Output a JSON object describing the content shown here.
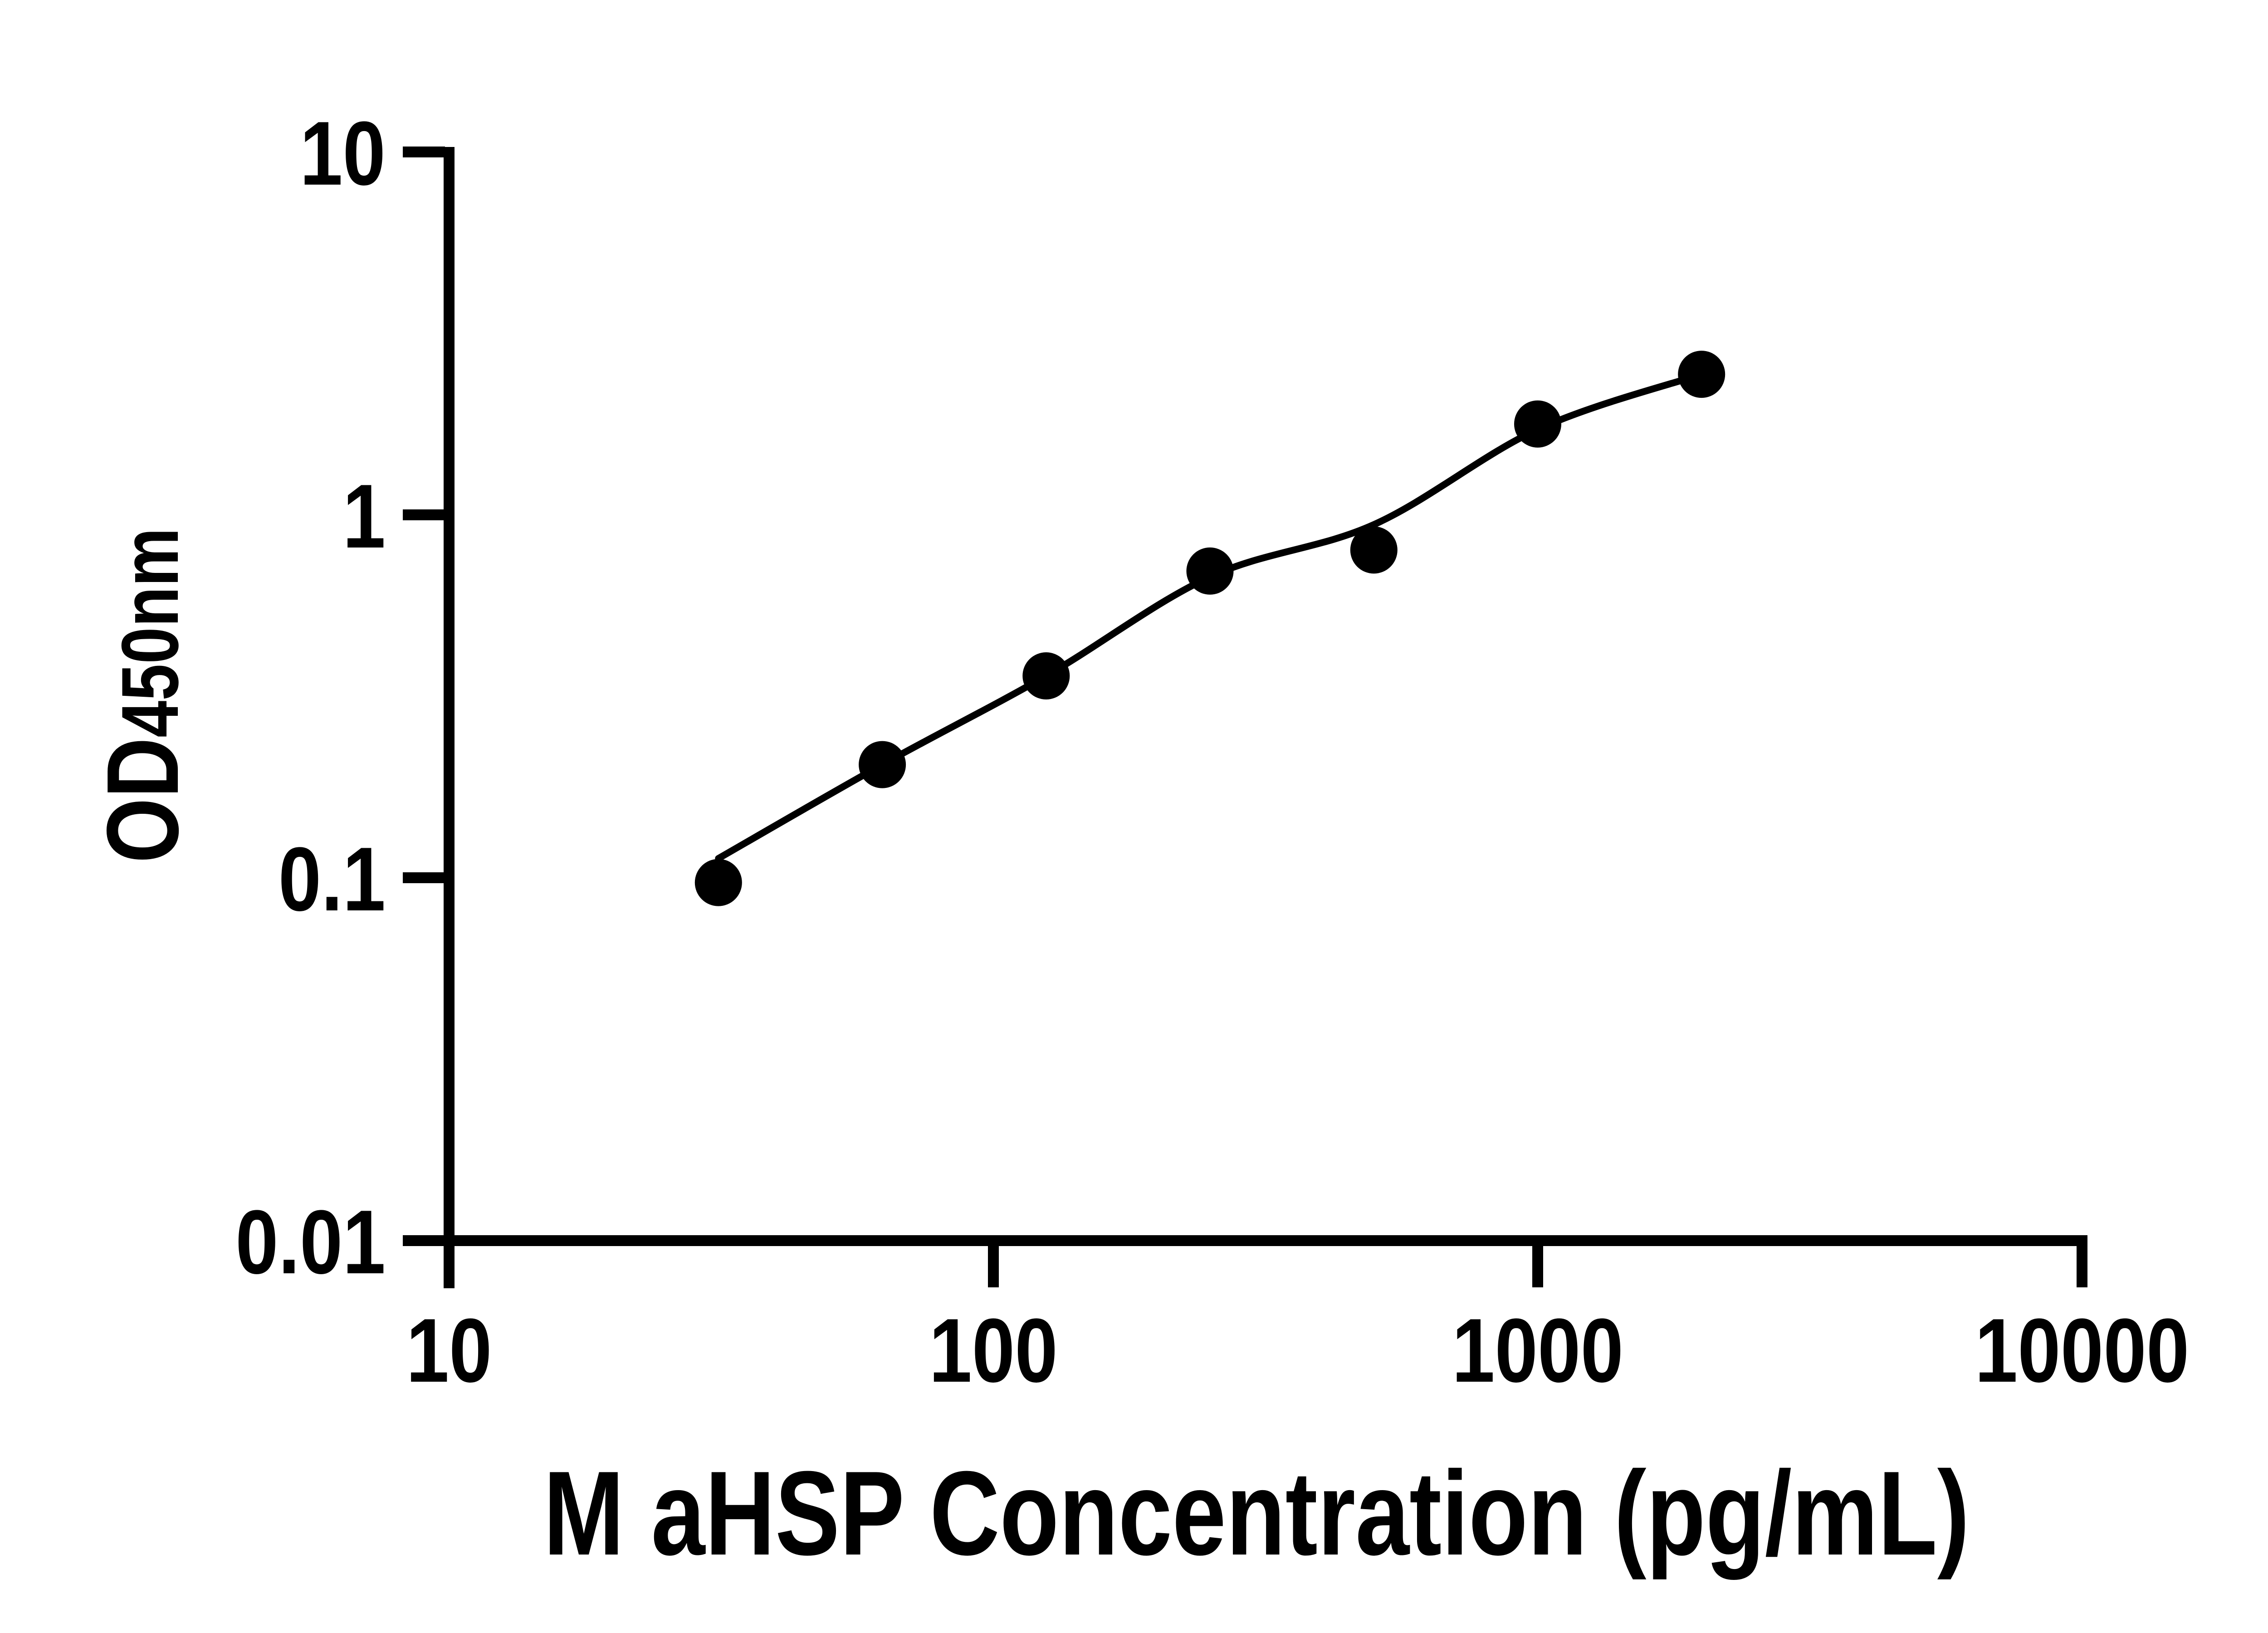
{
  "figure": {
    "background_color": "#ffffff",
    "ink_color": "#000000"
  },
  "chart_data": {
    "type": "scatter",
    "subtype": "log-log standard curve with fitted line",
    "xlabel": "M aHSP Concentration (pg/mL)",
    "ylabel_main": "OD",
    "ylabel_sub": "450nm",
    "x_scale": "log10",
    "y_scale": "log10",
    "xlim": [
      10,
      10000
    ],
    "ylim": [
      0.01,
      10
    ],
    "grid": false,
    "legend_position": "none",
    "x_ticks": [
      {
        "value": 10,
        "label": "10"
      },
      {
        "value": 100,
        "label": "100"
      },
      {
        "value": 1000,
        "label": "1000"
      },
      {
        "value": 10000,
        "label": "10000"
      }
    ],
    "y_ticks": [
      {
        "value": 10,
        "label": "10"
      },
      {
        "value": 1,
        "label": "1"
      },
      {
        "value": 0.1,
        "label": "0.1"
      },
      {
        "value": 0.01,
        "label": "0.01"
      }
    ],
    "series": [
      {
        "name": "standard-points",
        "marker": "filled-circle",
        "color": "#000000",
        "x": [
          31.25,
          62.5,
          125,
          250,
          500,
          1000,
          2000
        ],
        "y": [
          0.097,
          0.205,
          0.36,
          0.7,
          0.8,
          1.78,
          2.44
        ]
      }
    ],
    "fit_curve": {
      "name": "fitted-standard-curve",
      "color": "#000000",
      "x": [
        31.25,
        62.5,
        125,
        250,
        500,
        1000,
        2000
      ],
      "y": [
        0.113,
        0.205,
        0.36,
        0.675,
        0.94,
        1.72,
        2.44
      ]
    }
  }
}
